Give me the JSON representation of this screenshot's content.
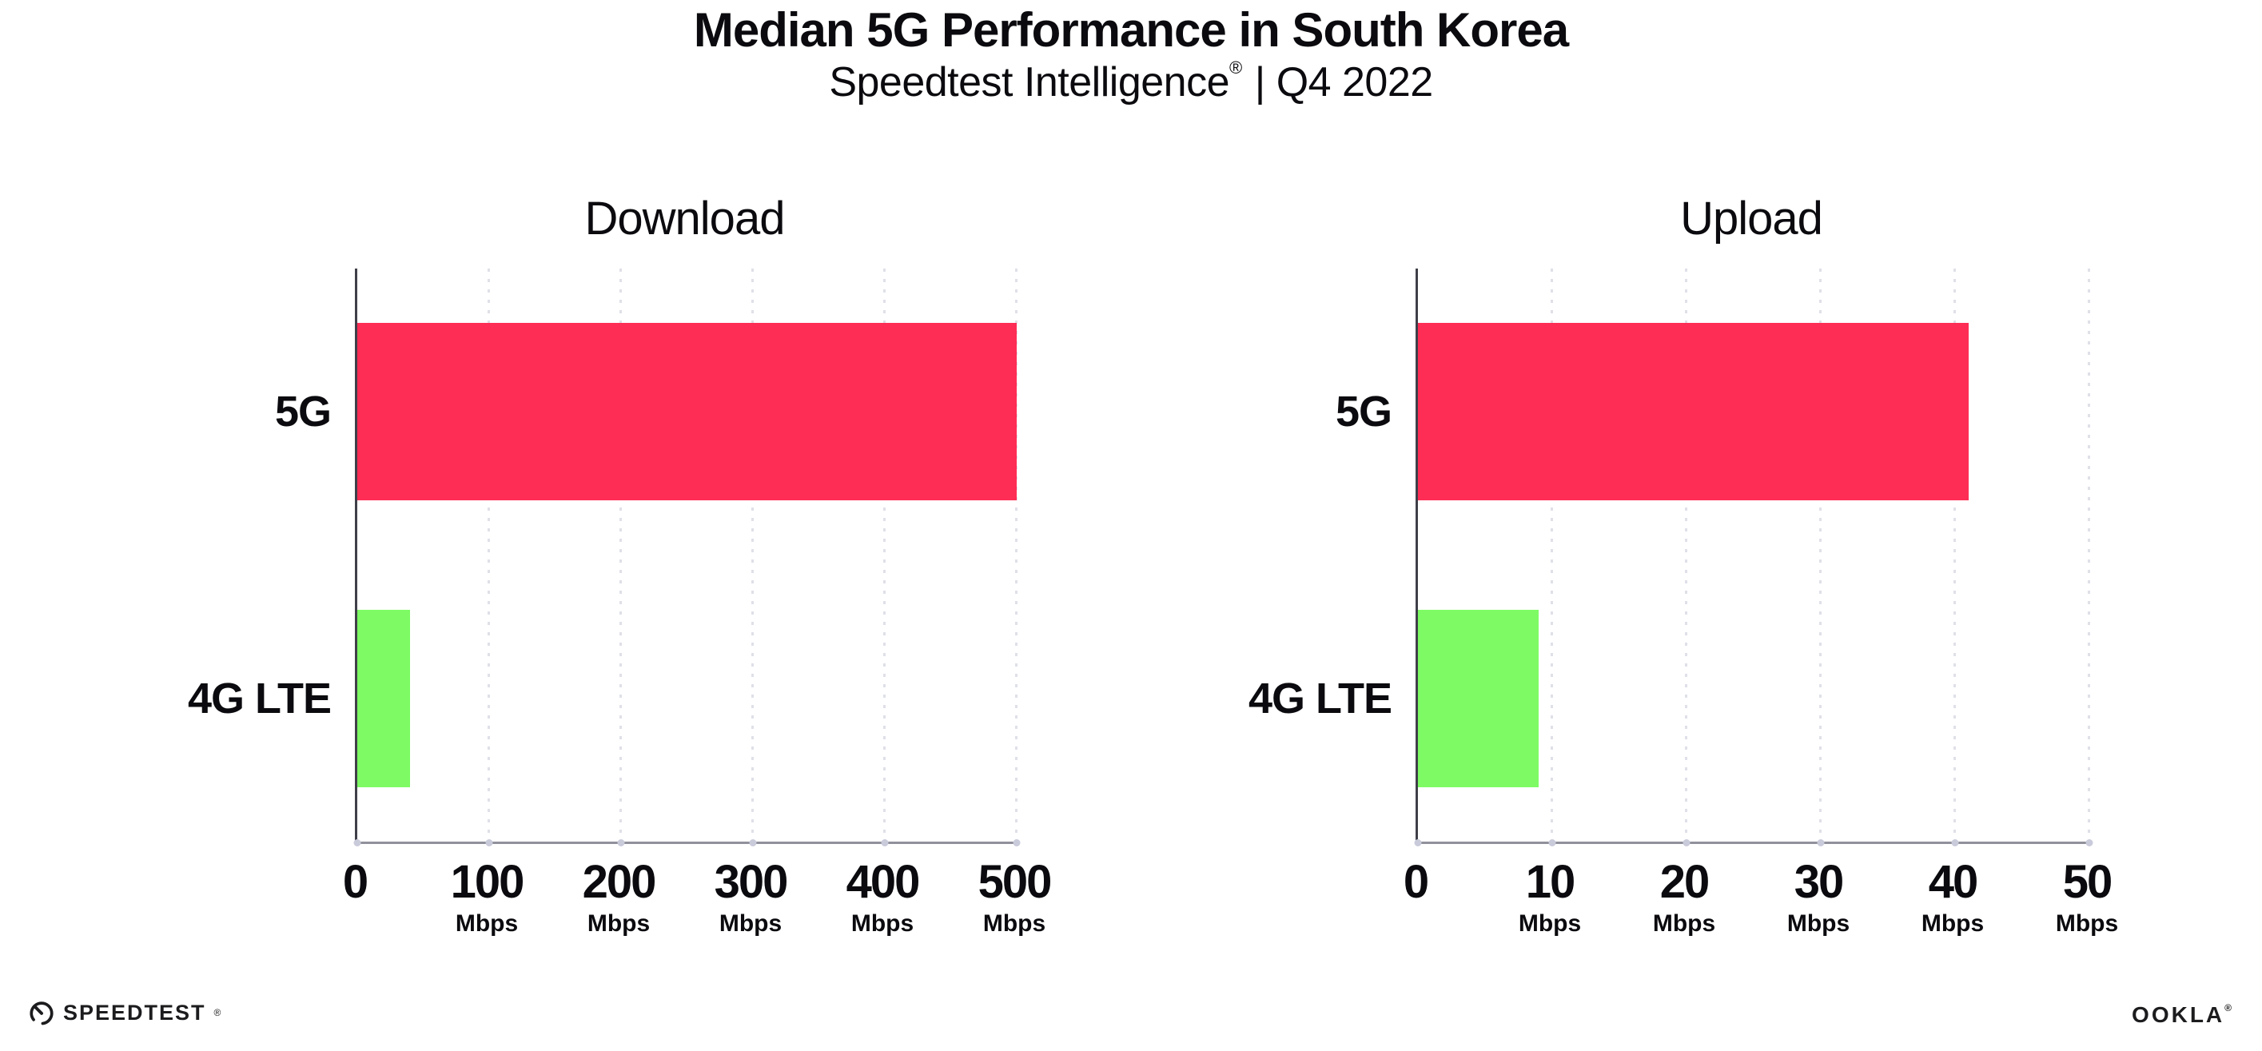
{
  "header": {
    "title": "Median 5G Performance in South Korea",
    "subtitle_brand": "Speedtest Intelligence",
    "subtitle_reg": "®",
    "subtitle_rest": "| Q4 2022"
  },
  "chart_data": [
    {
      "type": "bar",
      "orientation": "horizontal",
      "title": "Download",
      "categories": [
        "5G",
        "4G LTE"
      ],
      "values": [
        500,
        40
      ],
      "unit": "Mbps",
      "xlabel": "",
      "ylabel": "",
      "xlim": [
        0,
        500
      ],
      "xticks": [
        0,
        100,
        200,
        300,
        400,
        500
      ],
      "bar_colors": [
        "#FE2D55",
        "#7EFB64"
      ],
      "grid": "dotted-vertical",
      "legend": "none"
    },
    {
      "type": "bar",
      "orientation": "horizontal",
      "title": "Upload",
      "categories": [
        "5G",
        "4G LTE"
      ],
      "values": [
        41,
        9
      ],
      "unit": "Mbps",
      "xlabel": "",
      "ylabel": "",
      "xlim": [
        0,
        50
      ],
      "xticks": [
        0,
        10,
        20,
        30,
        40,
        50
      ],
      "bar_colors": [
        "#FE2D55",
        "#7EFB64"
      ],
      "grid": "dotted-vertical",
      "legend": "none"
    }
  ],
  "footer": {
    "speedtest_label": "SPEEDTEST",
    "speedtest_reg": "®",
    "ookla_label": "OOKLA",
    "ookla_reg": "®"
  },
  "colors": {
    "bar_5g": "#FE2D55",
    "bar_4g_lte": "#7EFB64",
    "gridline": "#dfe0e8",
    "y_axis": "#3f3f49",
    "x_axis": "#90919b",
    "text": "#0b0b0f"
  }
}
